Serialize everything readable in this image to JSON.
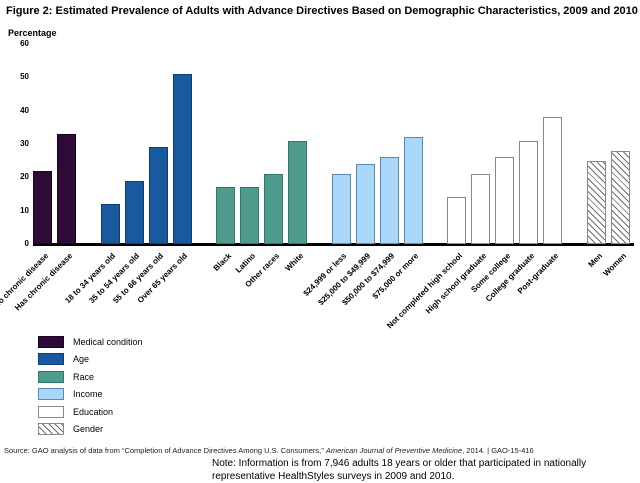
{
  "title": "Figure 2: Estimated Prevalence of Adults with Advance Directives Based on Demographic Characteristics, 2009 and 2010",
  "source": {
    "part1": "Source: GAO analysis of data from “Completion of Advance Directives Among U.S. Consumers,” ",
    "part2": "American Journal of Preventive Medicine",
    "part3": ", 2014.   |   GAO-15-416"
  },
  "note": "Note: Information is from 7,946 adults 18 years or older that participated in nationally representative HealthStyles surveys in 2009 and 2010.",
  "chart_data": {
    "type": "bar",
    "title": "Estimated Prevalence of Adults with Advance Directives Based on Demographic Characteristics, 2009 and 2010",
    "ylabel": "Percentage",
    "xlabel": "",
    "ylim": [
      0,
      60
    ],
    "yticks": [
      0,
      10,
      20,
      30,
      40,
      50,
      60
    ],
    "grid": false,
    "legend_position": "bottom-left",
    "groups": [
      {
        "name": "Medical condition",
        "fill": "#2e0a36",
        "border": "#1a0520",
        "pattern": "solid",
        "bars": [
          {
            "label": "No chronic disease",
            "value": 22
          },
          {
            "label": "Has chronic disease",
            "value": 33
          }
        ]
      },
      {
        "name": "Age",
        "fill": "#185a9d",
        "border": "#0f3e72",
        "pattern": "solid",
        "bars": [
          {
            "label": "18 to 34 years old",
            "value": 12
          },
          {
            "label": "35 to 54 years old",
            "value": 19
          },
          {
            "label": "55 to 66 years old",
            "value": 29
          },
          {
            "label": "Over 65 years old",
            "value": 51
          }
        ]
      },
      {
        "name": "Race",
        "fill": "#4f9c8e",
        "border": "#2f7a6e",
        "pattern": "solid",
        "bars": [
          {
            "label": "Black",
            "value": 17
          },
          {
            "label": "Latino",
            "value": 17
          },
          {
            "label": "Other races",
            "value": 21
          },
          {
            "label": "White",
            "value": 31
          }
        ]
      },
      {
        "name": "Income",
        "fill": "#a8d7f9",
        "border": "#5a87b8",
        "pattern": "solid",
        "bars": [
          {
            "label": "$24,999 or less",
            "value": 21
          },
          {
            "label": "$25,000 to $49,999",
            "value": 24
          },
          {
            "label": "$50,000 to $74,999",
            "value": 26
          },
          {
            "label": "$75,000 or more",
            "value": 32
          }
        ]
      },
      {
        "name": "Education",
        "fill": "#ffffff",
        "border": "#8a8a8a",
        "pattern": "outline",
        "bars": [
          {
            "label": "Not completed high school",
            "value": 14
          },
          {
            "label": "High school graduate",
            "value": 21
          },
          {
            "label": "Some college",
            "value": 26
          },
          {
            "label": "College graduate",
            "value": 31
          },
          {
            "label": "Post-graduate",
            "value": 38
          }
        ]
      },
      {
        "name": "Gender",
        "fill": "#ffffff",
        "border": "#8a8a8a",
        "pattern": "hatch",
        "bars": [
          {
            "label": "Men",
            "value": 25
          },
          {
            "label": "Women",
            "value": 28
          }
        ]
      }
    ],
    "legend": [
      {
        "label": "Medical condition",
        "pattern": "solid",
        "fill": "#2e0a36",
        "border": "#1a0520"
      },
      {
        "label": "Age",
        "pattern": "solid",
        "fill": "#185a9d",
        "border": "#0f3e72"
      },
      {
        "label": "Race",
        "pattern": "solid",
        "fill": "#4f9c8e",
        "border": "#2f7a6e"
      },
      {
        "label": "Income",
        "pattern": "solid",
        "fill": "#a8d7f9",
        "border": "#5a87b8"
      },
      {
        "label": "Education",
        "pattern": "outline",
        "fill": "#ffffff",
        "border": "#8a8a8a"
      },
      {
        "label": "Gender",
        "pattern": "hatch",
        "fill": "#ffffff",
        "border": "#8a8a8a"
      }
    ]
  }
}
